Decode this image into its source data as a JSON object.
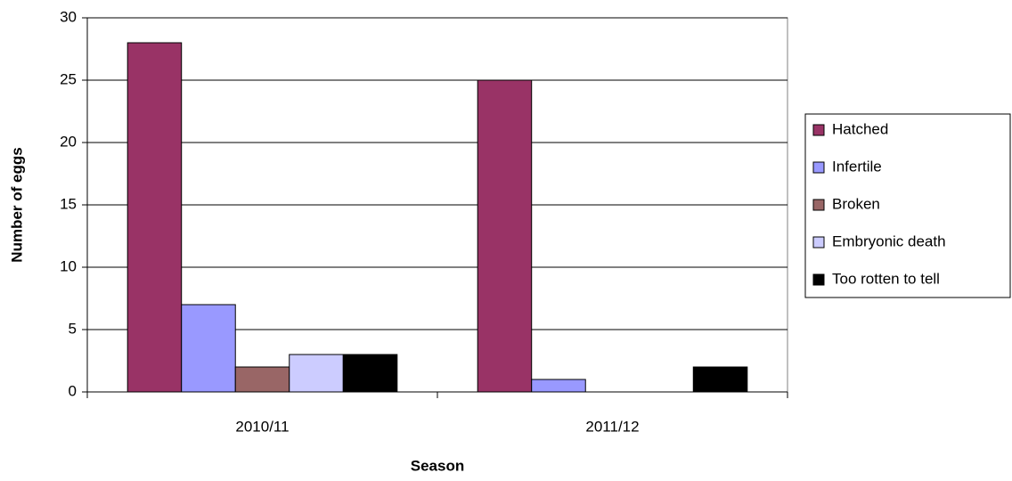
{
  "chart_data": {
    "type": "bar",
    "x_label": "Season",
    "y_label": "Number of eggs",
    "categories": [
      "2010/11",
      "2011/12"
    ],
    "series": [
      {
        "name": "Hatched",
        "color": "#993366",
        "values": [
          28,
          25
        ]
      },
      {
        "name": "Infertile",
        "color": "#9999ff",
        "values": [
          7,
          1
        ]
      },
      {
        "name": "Broken",
        "color": "#996666",
        "values": [
          2,
          0
        ]
      },
      {
        "name": "Embryonic death",
        "color": "#ccccff",
        "values": [
          3,
          0
        ]
      },
      {
        "name": "Too rotten to tell",
        "color": "#000000",
        "values": [
          3,
          2
        ]
      }
    ],
    "ylim": [
      0,
      30
    ],
    "yticks": [
      0,
      5,
      10,
      15,
      20,
      25,
      30
    ],
    "grid": true,
    "legend": "right"
  }
}
